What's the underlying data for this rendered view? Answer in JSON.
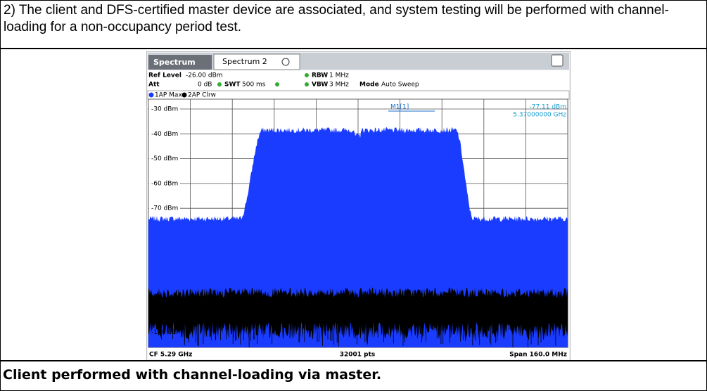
{
  "intro": "2) The client and DFS-certified master device are associated, and system testing will be performed with channel-loading for a non-occupancy period test.",
  "screenshot": {
    "tabs": [
      "Spectrum",
      "Spectrum 2"
    ],
    "settings": {
      "ref_level_label": "Ref Level",
      "ref_level": "-26.00 dBm",
      "att_label": "Att",
      "att": "0 dB",
      "swt_label": "SWT",
      "swt": "500 ms",
      "rbw_label": "RBW",
      "rbw": "1 MHz",
      "vbw_label": "VBW",
      "vbw": "3 MHz",
      "mode_label": "Mode",
      "mode": "Auto Sweep"
    },
    "traces": [
      "1AP Max",
      "2AP Clrw"
    ],
    "y_labels": [
      "-30 dBm",
      "-40 dBm",
      "-50 dBm",
      "-60 dBm",
      "-70 dBm",
      "-120 dBm"
    ],
    "marker": {
      "name": "M1[1]",
      "level": "-77.11 dBm",
      "frequency": "5.37000000 GHz"
    },
    "footer": {
      "center_freq": "CF 5.29 GHz",
      "points": "32001 pts",
      "span": "Span 160.0 MHz"
    }
  },
  "caption": "Client performed with channel-loading via master."
}
